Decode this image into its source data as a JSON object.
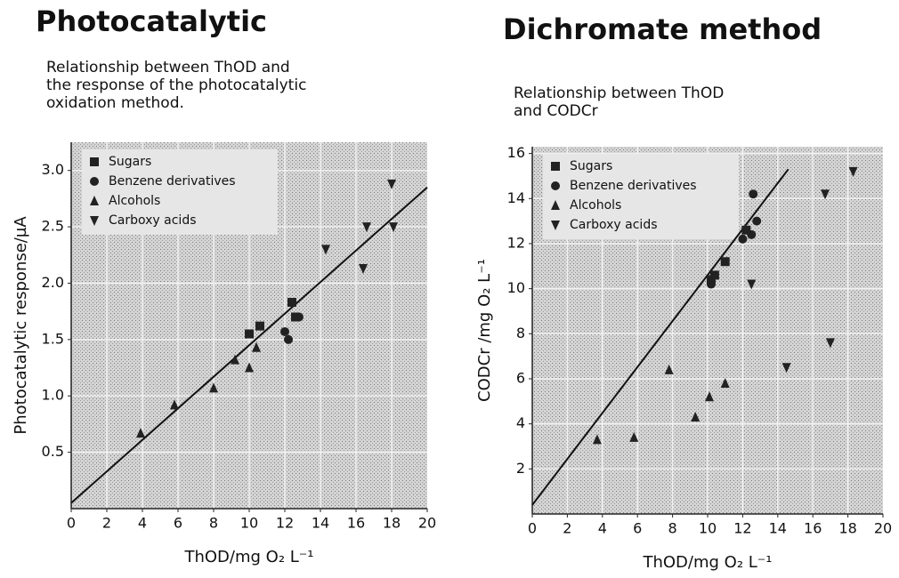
{
  "chart_data": [
    {
      "type": "scatter",
      "title": "Photocatalytic",
      "subtitle": [
        "Relationship between ThOD and",
        "the response of the photocatalytic",
        "oxidation method."
      ],
      "xlabel": "ThOD/mg O₂ L⁻¹",
      "ylabel": "Photocatalytic response/µA",
      "xlim": [
        0,
        20
      ],
      "ylim": [
        0,
        3.25
      ],
      "xticks": [
        0,
        2,
        4,
        6,
        8,
        10,
        12,
        14,
        16,
        18,
        20
      ],
      "yticks": [
        0.5,
        {
          "value": 1,
          "label": "1.0"
        },
        1.5,
        {
          "value": 2,
          "label": "2.0"
        },
        2.5,
        {
          "value": 3,
          "label": "3.0"
        }
      ],
      "grid": true,
      "legend": "upper left",
      "series": [
        {
          "name": "Sugars",
          "color": "#222222",
          "marker": "square",
          "x": [
            10,
            10.6,
            12.4,
            12.6
          ],
          "y": [
            1.55,
            1.62,
            1.83,
            1.7
          ]
        },
        {
          "name": "Benzene derivatives",
          "color": "#222222",
          "marker": "circle",
          "x": [
            12,
            12.2,
            12.8
          ],
          "y": [
            1.57,
            1.5,
            1.7
          ]
        },
        {
          "name": "Alcohols",
          "color": "#222222",
          "marker": "triangle-up",
          "x": [
            3.9,
            5.8,
            8,
            9.2,
            10,
            10.4
          ],
          "y": [
            0.67,
            0.92,
            1.07,
            1.32,
            1.25,
            1.43
          ]
        },
        {
          "name": "Carboxy acids",
          "color": "#222222",
          "marker": "triangle-down",
          "x": [
            14.3,
            16.4,
            16.6,
            18,
            18.1
          ],
          "y": [
            2.3,
            2.13,
            2.5,
            2.88,
            2.5
          ]
        }
      ],
      "fit_line": {
        "x": [
          0,
          20
        ],
        "y": [
          0.05,
          2.85
        ]
      }
    },
    {
      "type": "scatter",
      "title": "Dichromate method",
      "subtitle": [
        "Relationship between ThOD",
        "and CODCr"
      ],
      "xlabel": "ThOD/mg O₂ L⁻¹",
      "ylabel": "CODCr /mg O₂ L⁻¹",
      "xlim": [
        0,
        20
      ],
      "ylim": [
        0,
        16.3
      ],
      "xticks": [
        0,
        2,
        4,
        6,
        8,
        10,
        12,
        14,
        16,
        18,
        20
      ],
      "yticks": [
        2,
        4,
        6,
        8,
        10,
        12,
        14,
        16
      ],
      "grid": true,
      "legend": "upper left",
      "series": [
        {
          "name": "Sugars",
          "color": "#222222",
          "marker": "square",
          "x": [
            10.2,
            10.4,
            11,
            12.2
          ],
          "y": [
            10.4,
            10.6,
            11.2,
            12.6
          ]
        },
        {
          "name": "Benzene derivatives",
          "color": "#222222",
          "marker": "circle",
          "x": [
            12.6,
            12,
            12.5,
            12.8,
            10.2
          ],
          "y": [
            14.2,
            12.2,
            12.4,
            13,
            10.2
          ]
        },
        {
          "name": "Alcohols",
          "color": "#222222",
          "marker": "triangle-up",
          "x": [
            3.7,
            5.8,
            7.8,
            9.3,
            10.1,
            11
          ],
          "y": [
            3.3,
            3.4,
            6.4,
            4.3,
            5.2,
            5.8
          ]
        },
        {
          "name": "Carboxy acids",
          "color": "#222222",
          "marker": "triangle-down",
          "x": [
            12.5,
            14.5,
            16.7,
            17,
            18.3
          ],
          "y": [
            10.2,
            6.5,
            14.2,
            7.6,
            15.2
          ]
        }
      ],
      "fit_line": {
        "x": [
          0,
          14.6
        ],
        "y": [
          0.4,
          15.3
        ]
      }
    }
  ]
}
